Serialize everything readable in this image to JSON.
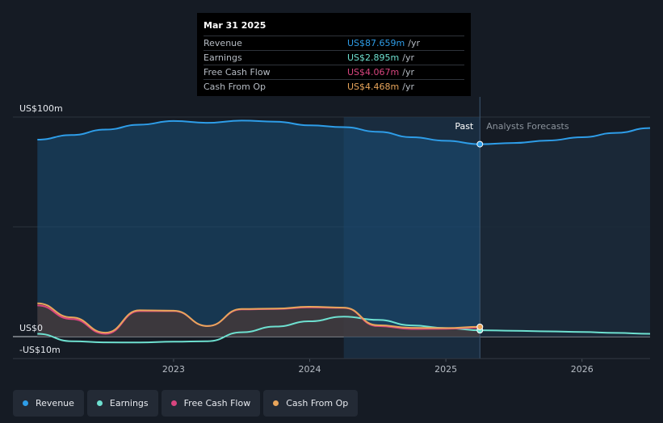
{
  "tooltip": {
    "date": "Mar 31 2025",
    "rows": [
      {
        "label": "Revenue",
        "value": "US$87.659m",
        "unit": "/yr",
        "color": "#2e9de8"
      },
      {
        "label": "Earnings",
        "value": "US$2.895m",
        "unit": "/yr",
        "color": "#6ee0d0"
      },
      {
        "label": "Free Cash Flow",
        "value": "US$4.067m",
        "unit": "/yr",
        "color": "#d9457f"
      },
      {
        "label": "Cash From Op",
        "value": "US$4.468m",
        "unit": "/yr",
        "color": "#e8a55b"
      }
    ]
  },
  "legend": [
    {
      "label": "Revenue",
      "color": "#2e9de8"
    },
    {
      "label": "Earnings",
      "color": "#6ee0d0"
    },
    {
      "label": "Free Cash Flow",
      "color": "#d9457f"
    },
    {
      "label": "Cash From Op",
      "color": "#e8a55b"
    }
  ],
  "chart_data": {
    "type": "area",
    "y_ticks": [
      {
        "value": 100,
        "label": "US$100m"
      },
      {
        "value": 0,
        "label": "US$0"
      },
      {
        "value": -10,
        "label": "-US$10m"
      }
    ],
    "ylim": [
      -10,
      100
    ],
    "x_ticks": [
      "2023",
      "2024",
      "2025",
      "2026"
    ],
    "x_tick_values": [
      2023.0,
      2024.0,
      2025.0,
      2026.0
    ],
    "xlim": [
      2021.82,
      2026.5
    ],
    "past_label": "Past",
    "forecast_label": "Analysts Forecasts",
    "past_end": 2025.25,
    "highlight_start": 2024.25,
    "grid": true,
    "series": [
      {
        "name": "Revenue",
        "color": "#2e9de8",
        "fill": "#1a4e77",
        "x": [
          2022.0,
          2022.25,
          2022.5,
          2022.75,
          2023.0,
          2023.25,
          2023.5,
          2023.75,
          2024.0,
          2024.25,
          2024.5,
          2024.75,
          2025.0,
          2025.25
        ],
        "y": [
          89.7,
          91.8,
          94.3,
          96.5,
          98.2,
          97.4,
          98.4,
          97.9,
          96.2,
          95.4,
          93.3,
          90.8,
          89.2,
          87.659
        ],
        "forecast_x": [
          2025.25,
          2025.5,
          2025.75,
          2026.0,
          2026.25,
          2026.5
        ],
        "forecast_y": [
          87.659,
          88.2,
          89.3,
          90.8,
          92.8,
          95.0
        ]
      },
      {
        "name": "Earnings",
        "color": "#6ee0d0",
        "x": [
          2022.0,
          2022.25,
          2022.5,
          2022.75,
          2023.0,
          2023.25,
          2023.5,
          2023.75,
          2024.0,
          2024.25,
          2024.5,
          2024.75,
          2025.0,
          2025.25
        ],
        "y": [
          1.3,
          -2.1,
          -2.6,
          -2.7,
          -2.3,
          -2.1,
          2.0,
          4.6,
          7.0,
          9.1,
          7.6,
          5.1,
          3.9,
          2.895
        ],
        "forecast_x": [
          2025.25,
          2025.5,
          2025.75,
          2026.0,
          2026.25,
          2026.5
        ],
        "forecast_y": [
          2.895,
          2.7,
          2.4,
          2.1,
          1.7,
          1.3
        ]
      },
      {
        "name": "Free Cash Flow",
        "color": "#d9457f",
        "x": [
          2022.0,
          2022.25,
          2022.5,
          2022.75,
          2023.0,
          2023.25,
          2023.5,
          2023.75,
          2024.0,
          2024.25,
          2024.5,
          2024.75,
          2025.0,
          2025.25
        ],
        "y": [
          14.2,
          8.0,
          1.3,
          11.6,
          11.6,
          4.8,
          12.4,
          12.6,
          13.3,
          13.1,
          4.8,
          3.5,
          3.6,
          4.067
        ]
      },
      {
        "name": "Cash From Op",
        "color": "#e8a55b",
        "fill": "#4a3a37",
        "x": [
          2022.0,
          2022.25,
          2022.5,
          2022.75,
          2023.0,
          2023.25,
          2023.5,
          2023.75,
          2024.0,
          2024.25,
          2024.5,
          2024.75,
          2025.0,
          2025.25
        ],
        "y": [
          15.2,
          8.8,
          1.8,
          12.0,
          11.8,
          4.8,
          12.6,
          12.8,
          13.6,
          13.2,
          5.2,
          4.0,
          3.9,
          4.468
        ]
      }
    ]
  }
}
